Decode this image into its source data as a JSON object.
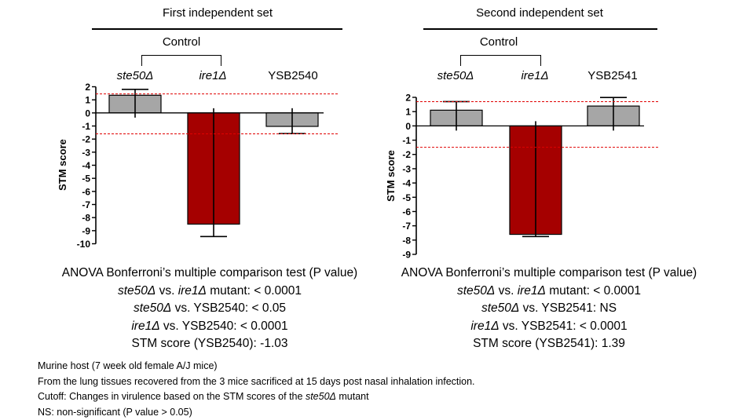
{
  "footnotes": {
    "host": "Murine host (7 week old female A/J mice)",
    "tissues": "From the lung tissues recovered from the 3 mice sacrificed at 15 days post nasal inhalation infection.",
    "cutoff_pre": "Cutoff: Changes in virulence based on the STM scores of the ",
    "cutoff_italic": "ste50Δ",
    "cutoff_post": " mutant",
    "ns": "NS: non-significant (P value > 0.05)"
  },
  "colors": {
    "control_bar": "#a6a6a6",
    "ire1_bar": "#a50000",
    "cutoff_line": "#e00000"
  },
  "chart_data": [
    {
      "type": "bar",
      "title": "First independent set",
      "group_label": "Control",
      "categories": [
        "ste50Δ",
        "ire1Δ",
        "YSB2540"
      ],
      "values": [
        1.35,
        -8.5,
        -1.03
      ],
      "errors": [
        0.45,
        0.95,
        0.55
      ],
      "ylabel": "STM score",
      "ylim": [
        -10,
        2
      ],
      "yticks": [
        2,
        1,
        0,
        -1,
        -2,
        -3,
        -4,
        -5,
        -6,
        -7,
        -8,
        -9,
        -10
      ],
      "cutoffs": [
        1.45,
        -1.6
      ],
      "stats": {
        "heading": "ANOVA Bonferroni’s multiple comparison test (P value)",
        "lines": [
          {
            "italic": "ste50Δ",
            "text1": " vs. ",
            "italic2": "ire1Δ",
            "text2": " mutant: < 0.0001"
          },
          {
            "italic": "ste50Δ",
            "text1": " vs. YSB2540: < 0.05",
            "italic2": "",
            "text2": ""
          },
          {
            "italic": "ire1Δ",
            "text1": " vs. YSB2540: < 0.0001",
            "italic2": "",
            "text2": ""
          },
          {
            "italic": "",
            "text1": "STM score (YSB2540): -1.03",
            "italic2": "",
            "text2": ""
          }
        ]
      }
    },
    {
      "type": "bar",
      "title": "Second independent set",
      "group_label": "Control",
      "categories": [
        "ste50Δ",
        "ire1Δ",
        "YSB2541"
      ],
      "values": [
        1.1,
        -7.6,
        1.39
      ],
      "errors": [
        0.6,
        0.15,
        0.6
      ],
      "ylabel": "STM score",
      "ylim": [
        -9,
        2
      ],
      "yticks": [
        2,
        1,
        0,
        -1,
        -2,
        -3,
        -4,
        -5,
        -6,
        -7,
        -8,
        -9
      ],
      "cutoffs": [
        1.7,
        -1.5
      ],
      "stats": {
        "heading": "ANOVA Bonferroni’s multiple comparison test (P value)",
        "lines": [
          {
            "italic": "ste50Δ",
            "text1": " vs. ",
            "italic2": "ire1Δ",
            "text2": " mutant: < 0.0001"
          },
          {
            "italic": "ste50Δ",
            "text1": " vs. YSB2541:  NS",
            "italic2": "",
            "text2": ""
          },
          {
            "italic": "ire1Δ",
            "text1": " vs. YSB2541: < 0.0001",
            "italic2": "",
            "text2": ""
          },
          {
            "italic": "",
            "text1": "STM score (YSB2541): 1.39",
            "italic2": "",
            "text2": ""
          }
        ]
      }
    }
  ]
}
